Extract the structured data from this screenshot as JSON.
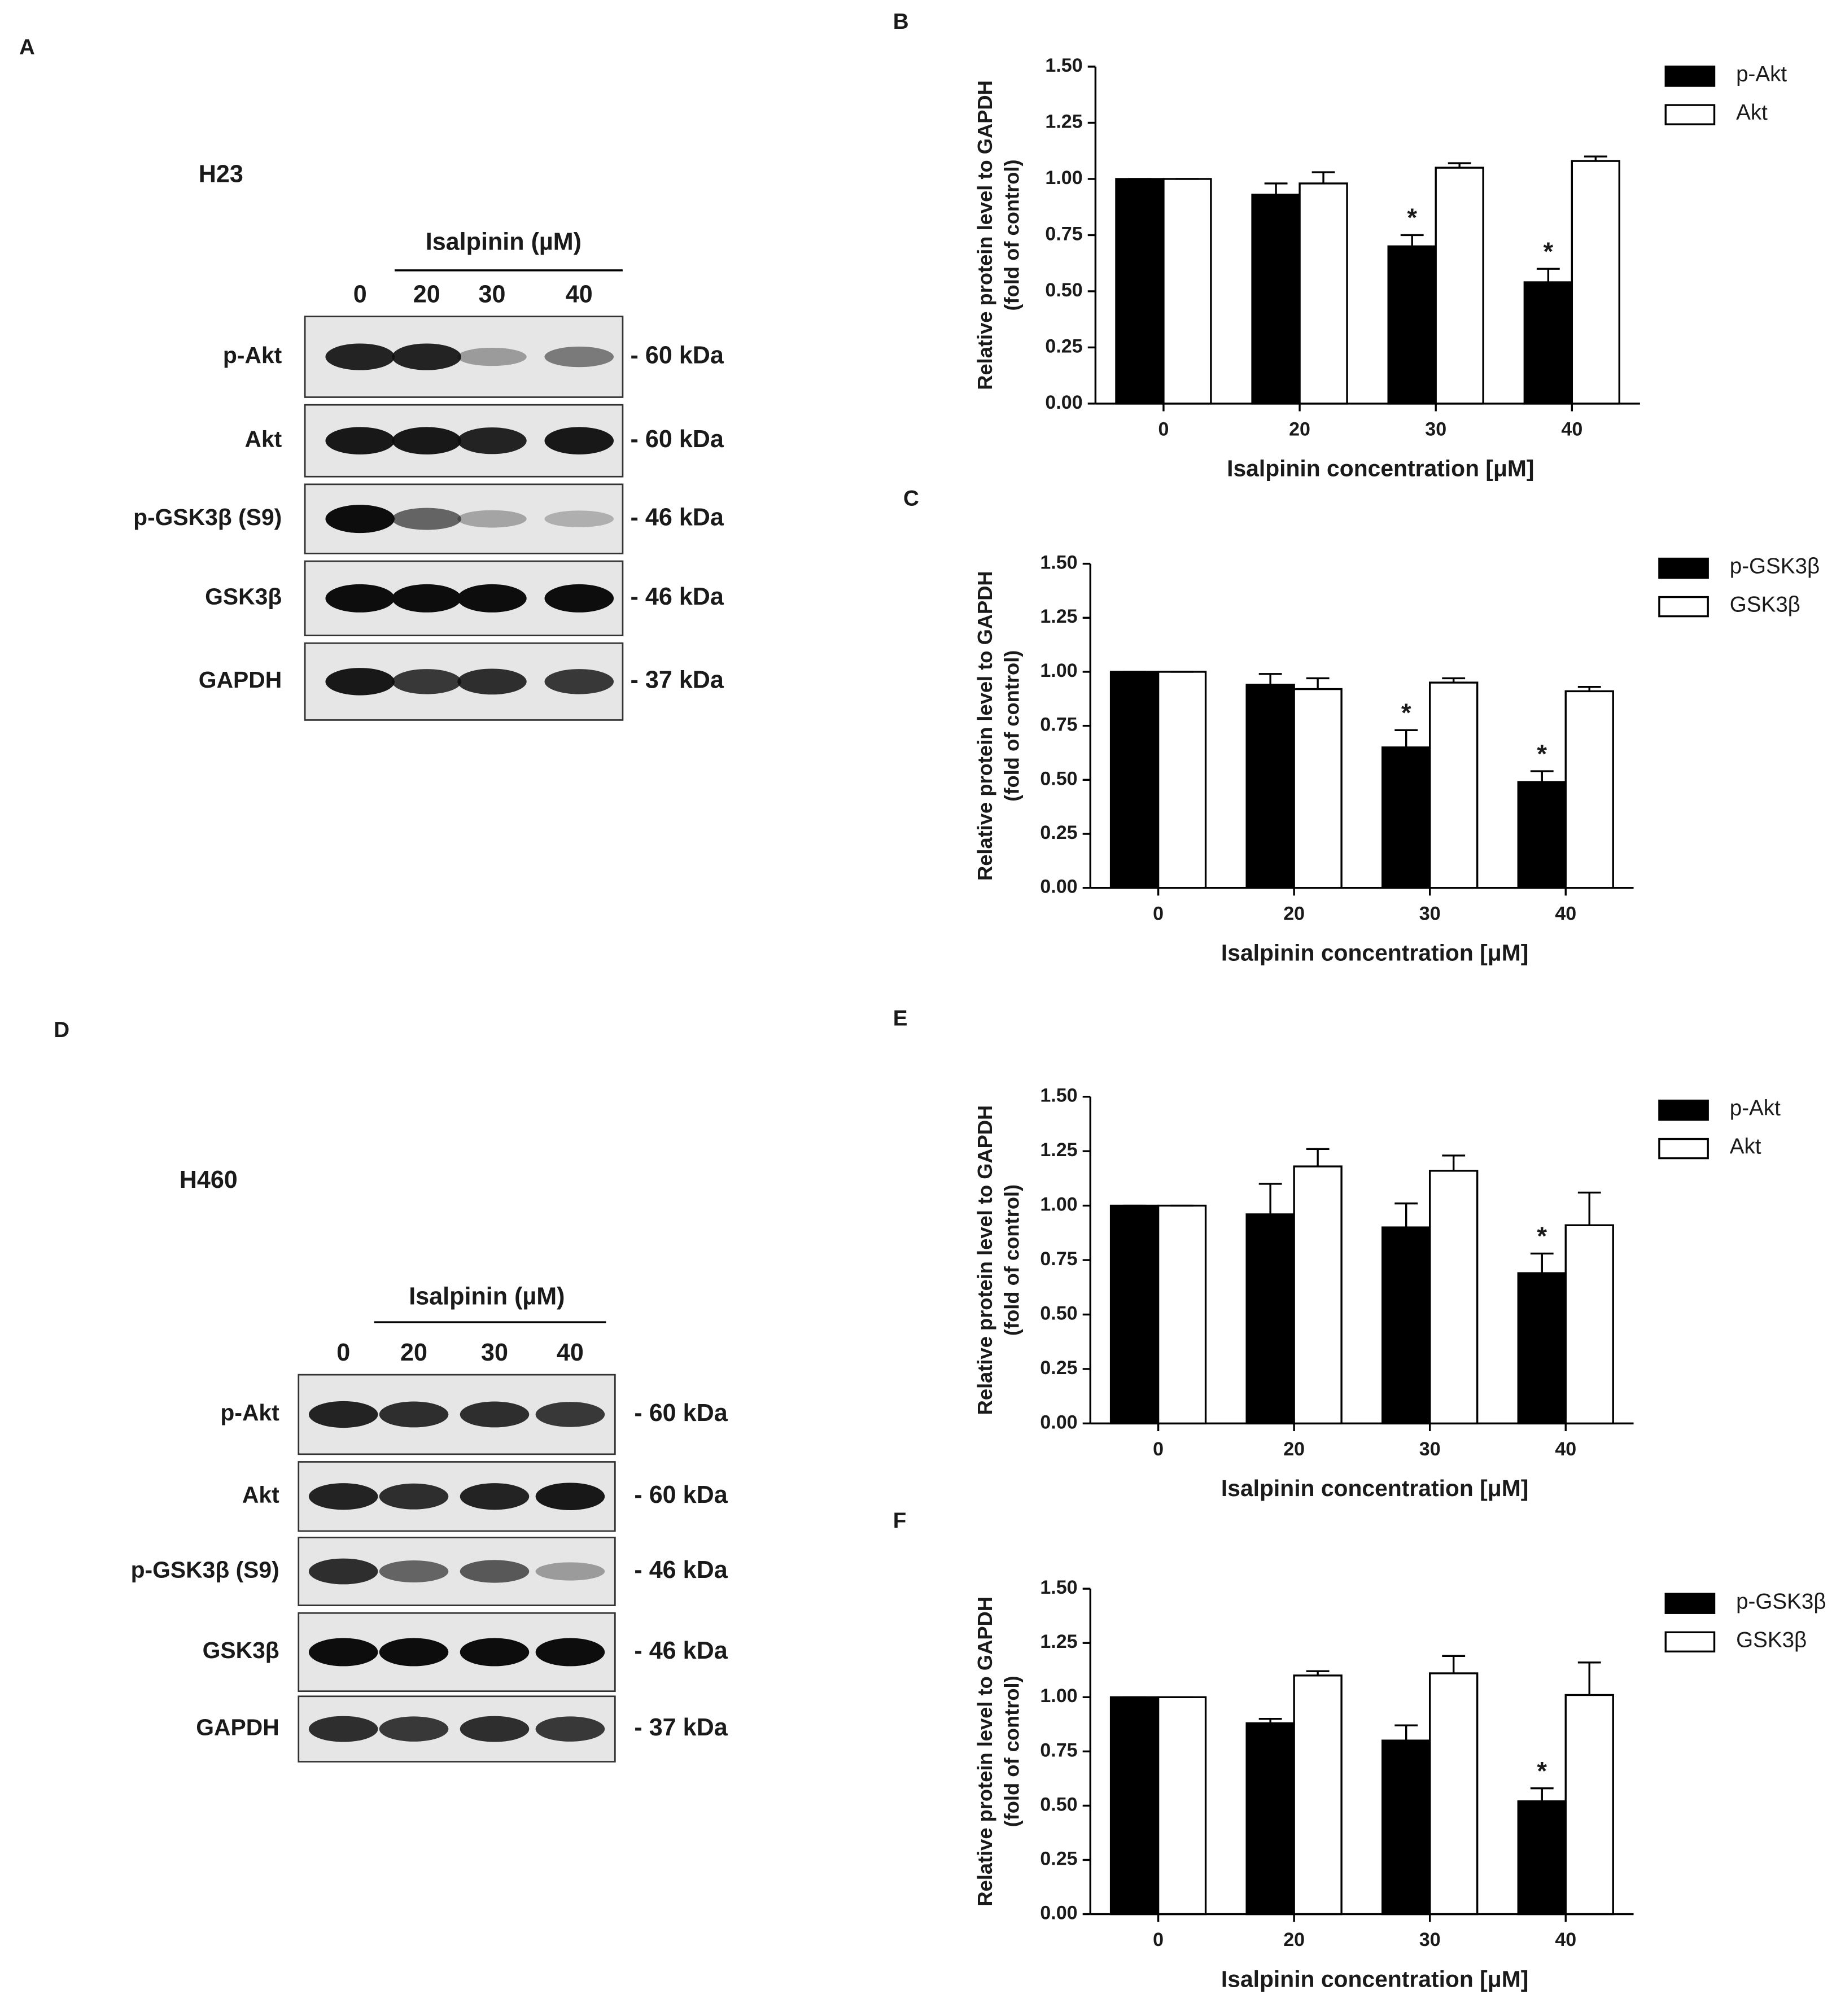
{
  "chart_data": [
    {
      "type": "bar",
      "panel": "B",
      "y_label": [
        "Relative protein level to GAPDH",
        "(fold of control)"
      ],
      "x_label": "Isalpinin concentration [μM]",
      "categories": [
        "0",
        "20",
        "30",
        "40"
      ],
      "series": [
        {
          "name": "p-Akt",
          "color": "#000000",
          "values": [
            1.0,
            0.93,
            0.7,
            0.54
          ],
          "errors": [
            0,
            0.05,
            0.05,
            0.06
          ],
          "significance": [
            null,
            null,
            "*",
            "*"
          ]
        },
        {
          "name": "Akt",
          "color": "#ffffff",
          "values": [
            1.0,
            0.98,
            1.05,
            1.08
          ],
          "errors": [
            0,
            0.05,
            0.02,
            0.02
          ],
          "significance": [
            null,
            null,
            null,
            null
          ]
        }
      ],
      "ylim": [
        0,
        1.5
      ],
      "yticks": [
        {
          "value": 0,
          "label": "0.00"
        },
        {
          "value": 0.25,
          "label": "0.25"
        },
        {
          "value": 0.5,
          "label": "0.50"
        },
        {
          "value": 0.75,
          "label": "0.75"
        },
        {
          "value": 1,
          "label": "1.00"
        },
        {
          "value": 1.25,
          "label": "1.25"
        },
        {
          "value": 1.5,
          "label": "1.50"
        }
      ],
      "legend": "right"
    },
    {
      "type": "bar",
      "panel": "C",
      "y_label": [
        "Relative protein level to GAPDH",
        "(fold of control)"
      ],
      "x_label": "Isalpinin concentration [μM]",
      "categories": [
        "0",
        "20",
        "30",
        "40"
      ],
      "series": [
        {
          "name": "p-GSK3β",
          "color": "#000000",
          "values": [
            1.0,
            0.94,
            0.65,
            0.49
          ],
          "errors": [
            0,
            0.05,
            0.08,
            0.05
          ],
          "significance": [
            null,
            null,
            "*",
            "*"
          ]
        },
        {
          "name": "GSK3β",
          "color": "#ffffff",
          "values": [
            1.0,
            0.92,
            0.95,
            0.91
          ],
          "errors": [
            0,
            0.05,
            0.02,
            0.02
          ],
          "significance": [
            null,
            null,
            null,
            null
          ]
        }
      ],
      "ylim": [
        0,
        1.5
      ],
      "yticks": [
        {
          "value": 0,
          "label": "0.00"
        },
        {
          "value": 0.25,
          "label": "0.25"
        },
        {
          "value": 0.5,
          "label": "0.50"
        },
        {
          "value": 0.75,
          "label": "0.75"
        },
        {
          "value": 1,
          "label": "1.00"
        },
        {
          "value": 1.25,
          "label": "1.25"
        },
        {
          "value": 1.5,
          "label": "1.50"
        }
      ],
      "legend": "right"
    },
    {
      "type": "bar",
      "panel": "E",
      "y_label": [
        "Relative protein level to GAPDH",
        "(fold of control)"
      ],
      "x_label": "Isalpinin concentration [μM]",
      "categories": [
        "0",
        "20",
        "30",
        "40"
      ],
      "series": [
        {
          "name": "p-Akt",
          "color": "#000000",
          "values": [
            1.0,
            0.96,
            0.9,
            0.69
          ],
          "errors": [
            0,
            0.14,
            0.11,
            0.09
          ],
          "significance": [
            null,
            null,
            null,
            "*"
          ]
        },
        {
          "name": "Akt",
          "color": "#ffffff",
          "values": [
            1.0,
            1.18,
            1.16,
            0.91
          ],
          "errors": [
            0,
            0.08,
            0.07,
            0.15
          ],
          "significance": [
            null,
            null,
            null,
            null
          ]
        }
      ],
      "ylim": [
        0,
        1.5
      ],
      "yticks": [
        {
          "value": 0,
          "label": "0.00"
        },
        {
          "value": 0.25,
          "label": "0.25"
        },
        {
          "value": 0.5,
          "label": "0.50"
        },
        {
          "value": 0.75,
          "label": "0.75"
        },
        {
          "value": 1,
          "label": "1.00"
        },
        {
          "value": 1.25,
          "label": "1.25"
        },
        {
          "value": 1.5,
          "label": "1.50"
        }
      ],
      "legend": "right"
    },
    {
      "type": "bar",
      "panel": "F",
      "y_label": [
        "Relative protein level to GAPDH",
        "(fold of control)"
      ],
      "x_label": "Isalpinin concentration [μM]",
      "categories": [
        "0",
        "20",
        "30",
        "40"
      ],
      "series": [
        {
          "name": "p-GSK3β",
          "color": "#000000",
          "values": [
            1.0,
            0.88,
            0.8,
            0.52
          ],
          "errors": [
            0,
            0.02,
            0.07,
            0.06
          ],
          "significance": [
            null,
            null,
            null,
            "*"
          ]
        },
        {
          "name": "GSK3β",
          "color": "#ffffff",
          "values": [
            1.0,
            1.1,
            1.11,
            1.01
          ],
          "errors": [
            0,
            0.02,
            0.08,
            0.15
          ],
          "significance": [
            null,
            null,
            null,
            null
          ]
        }
      ],
      "ylim": [
        0,
        1.5
      ],
      "yticks": [
        {
          "value": 0,
          "label": "0.00"
        },
        {
          "value": 0.25,
          "label": "0.25"
        },
        {
          "value": 0.5,
          "label": "0.50"
        },
        {
          "value": 0.75,
          "label": "0.75"
        },
        {
          "value": 1,
          "label": "1.00"
        },
        {
          "value": 1.25,
          "label": "1.25"
        },
        {
          "value": 1.5,
          "label": "1.50"
        }
      ],
      "legend": "right"
    }
  ],
  "blots": [
    {
      "panel": "A",
      "cell_line": "H23",
      "treatment": "Isalpinin (µM)",
      "lanes": [
        "0",
        "20",
        "30",
        "40"
      ],
      "rows": [
        {
          "label": "p-Akt",
          "size": "- 60 kDa"
        },
        {
          "label": "Akt",
          "size": "- 60 kDa"
        },
        {
          "label": "p-GSK3β (S9)",
          "size": "- 46 kDa"
        },
        {
          "label": "GSK3β",
          "size": "- 46 kDa"
        },
        {
          "label": "GAPDH",
          "size": "- 37 kDa"
        }
      ]
    },
    {
      "panel": "D",
      "cell_line": "H460",
      "treatment": "Isalpinin (µM)",
      "lanes": [
        "0",
        "20",
        "30",
        "40"
      ],
      "rows": [
        {
          "label": "p-Akt",
          "size": "- 60 kDa"
        },
        {
          "label": "Akt",
          "size": "- 60 kDa"
        },
        {
          "label": "p-GSK3β (S9)",
          "size": "- 46 kDa"
        },
        {
          "label": "GSK3β",
          "size": "- 46 kDa"
        },
        {
          "label": "GAPDH",
          "size": "- 37 kDa"
        }
      ]
    }
  ]
}
